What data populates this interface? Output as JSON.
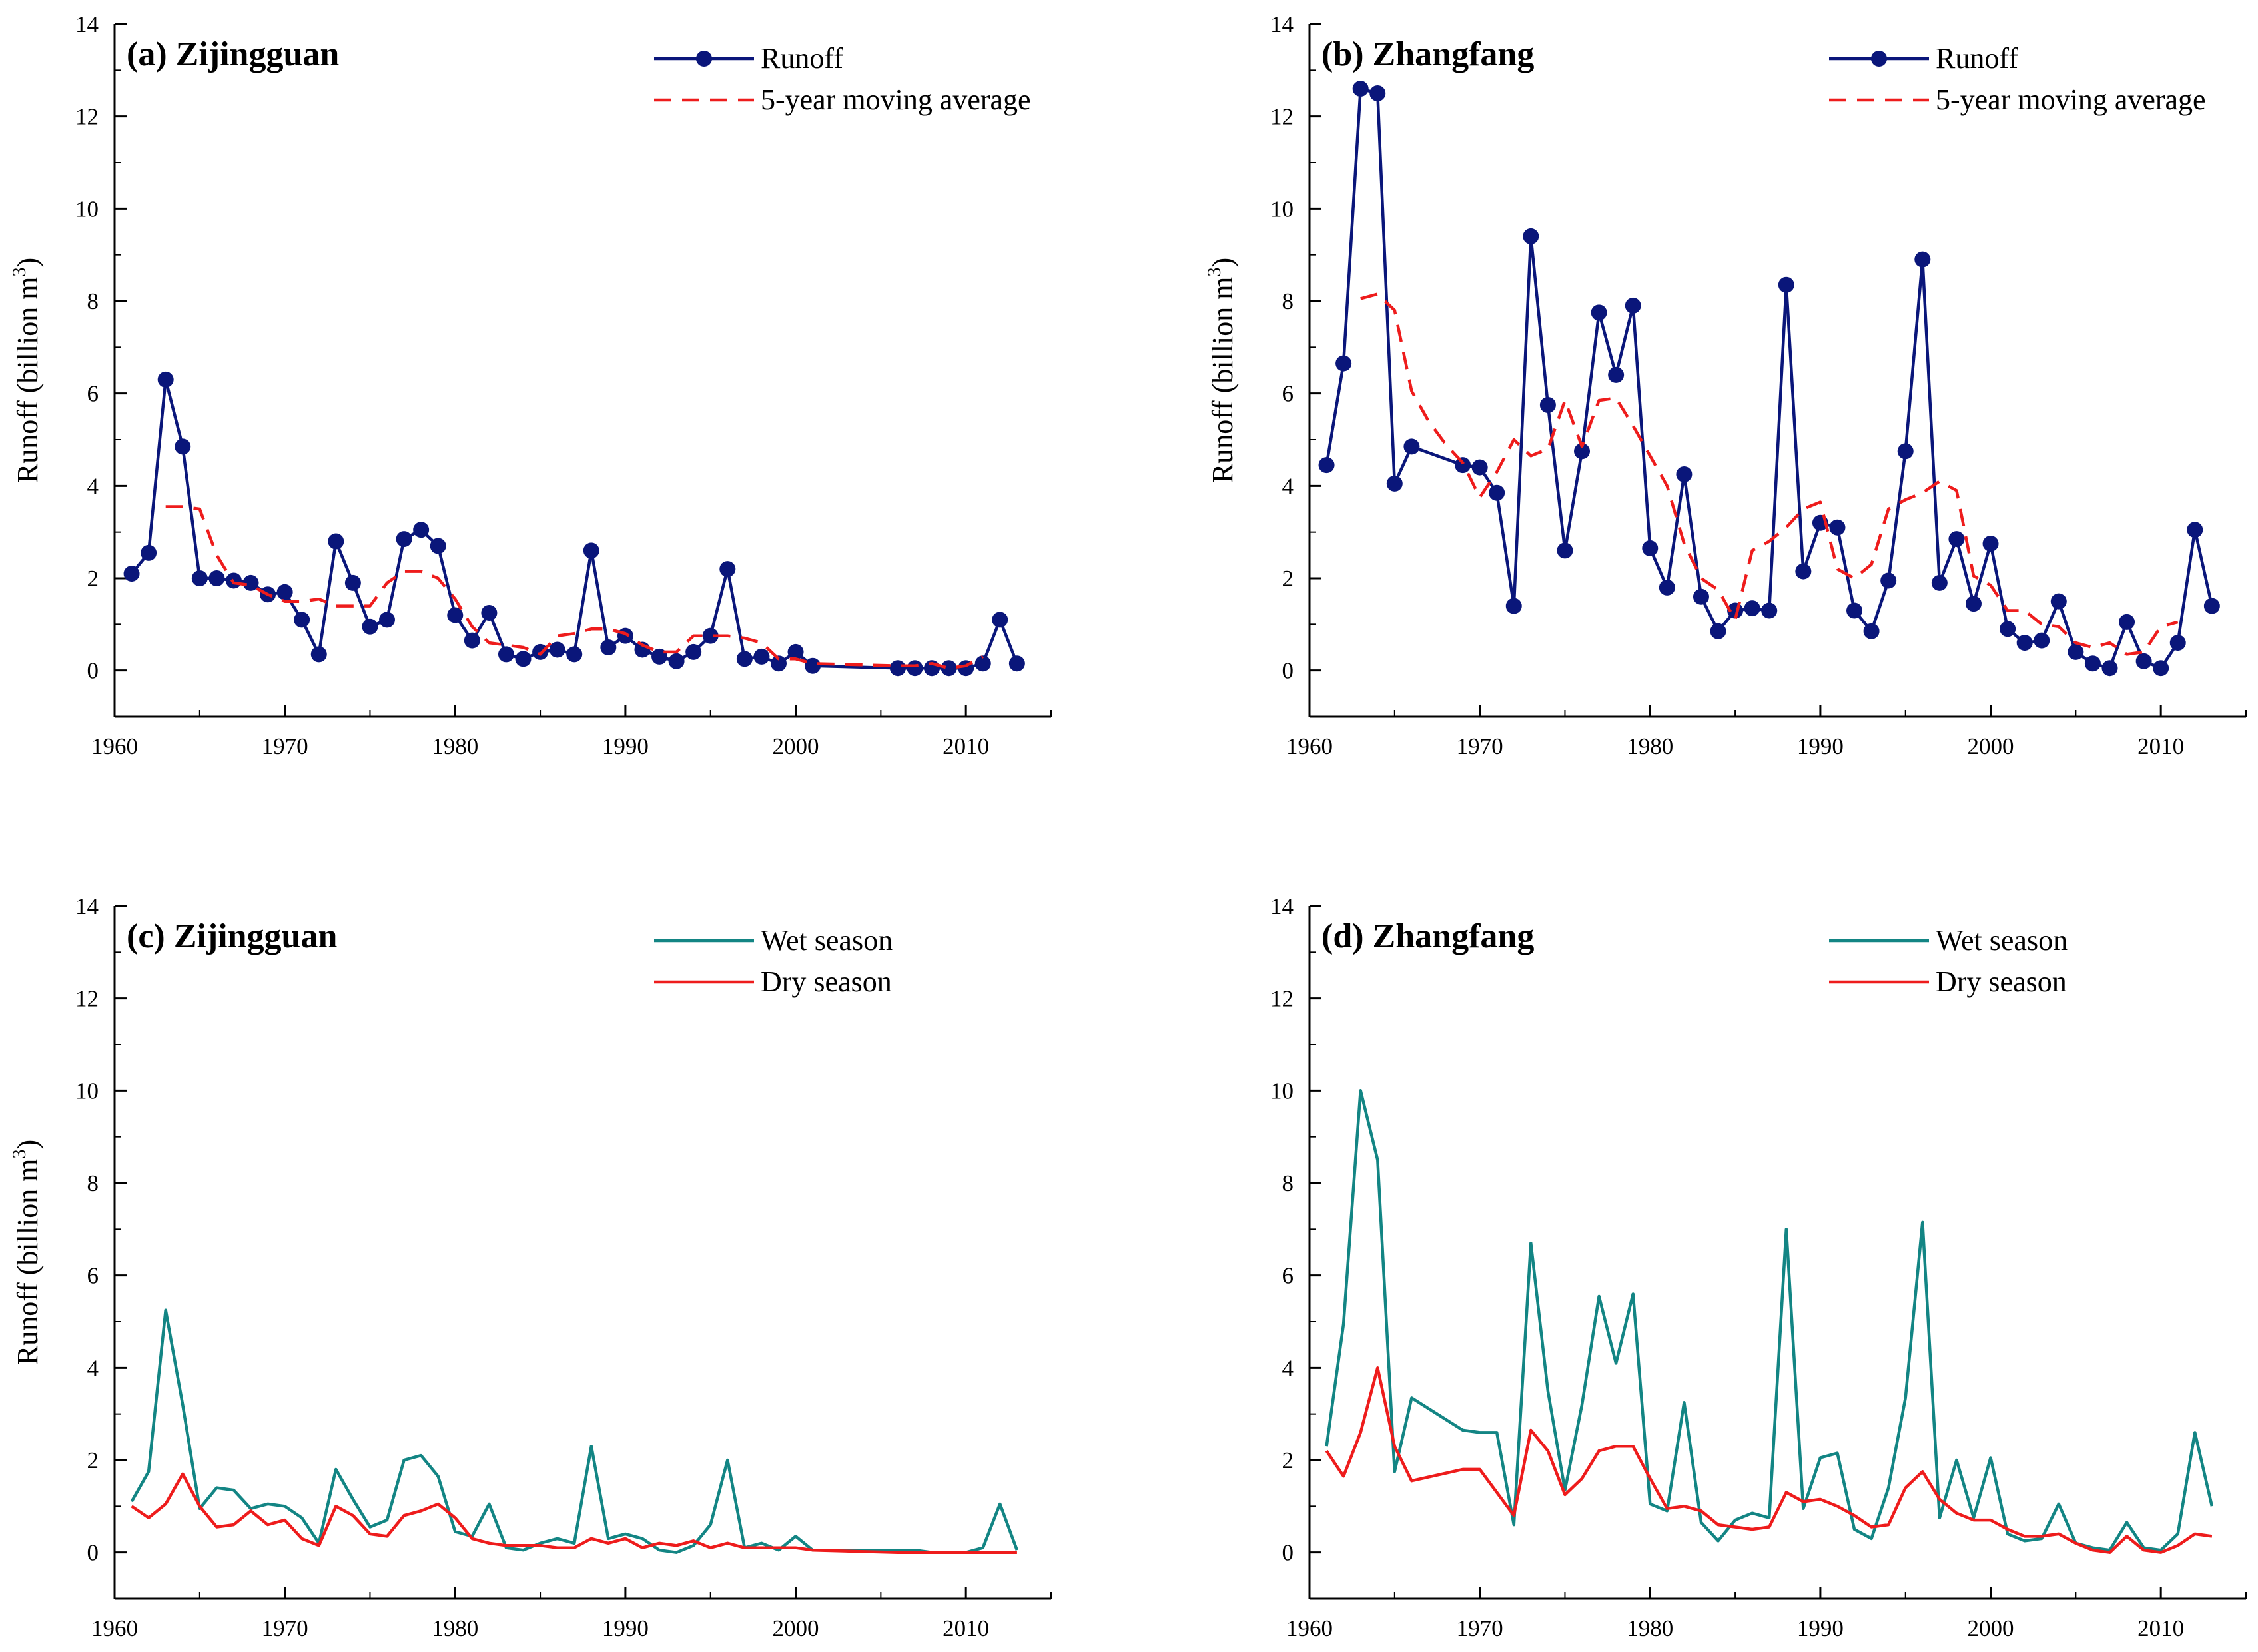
{
  "colors": {
    "runoff": "#0a167a",
    "moving_average": "#ee1c1c",
    "wet_season": "#138584",
    "dry_season": "#ee1c1c",
    "axis": "#000000"
  },
  "chart_data": [
    {
      "id": "a",
      "type": "line",
      "title": "(a) Zijingguan",
      "xlabel": "",
      "ylabel": "Runoff (billion m",
      "ylabel_sup": "3",
      "ylabel_end": ")",
      "xlim": [
        1960,
        2015
      ],
      "ylim": [
        -1,
        14
      ],
      "x_ticks": [
        1960,
        1970,
        1980,
        1990,
        2000,
        2010
      ],
      "y_ticks": [
        0,
        2,
        4,
        6,
        8,
        10,
        12,
        14
      ],
      "legend_position": "top-right",
      "series": [
        {
          "name": "Runoff",
          "style": "line-markers",
          "color_key": "runoff",
          "x": [
            1961,
            1962,
            1963,
            1964,
            1965,
            1966,
            1967,
            1968,
            1969,
            1970,
            1971,
            1972,
            1973,
            1974,
            1975,
            1976,
            1977,
            1978,
            1979,
            1980,
            1981,
            1982,
            1983,
            1984,
            1985,
            1986,
            1987,
            1988,
            1989,
            1990,
            1991,
            1992,
            1993,
            1994,
            1995,
            1996,
            1997,
            1998,
            1999,
            2000,
            2001,
            2006,
            2007,
            2008,
            2009,
            2010,
            2011,
            2012,
            2013
          ],
          "values": [
            2.1,
            2.55,
            6.3,
            4.85,
            2.0,
            2.0,
            1.95,
            1.9,
            1.65,
            1.7,
            1.1,
            0.35,
            2.8,
            1.9,
            0.95,
            1.1,
            2.85,
            3.05,
            2.7,
            1.2,
            0.65,
            1.25,
            0.35,
            0.25,
            0.4,
            0.45,
            0.35,
            2.6,
            0.5,
            0.75,
            0.45,
            0.3,
            0.2,
            0.4,
            0.75,
            2.2,
            0.25,
            0.3,
            0.15,
            0.4,
            0.1,
            0.05,
            0.05,
            0.05,
            0.05,
            0.05,
            0.15,
            1.1,
            0.15
          ]
        },
        {
          "name": "5-year moving average",
          "style": "dashed",
          "color_key": "moving_average",
          "x": [
            1963,
            1964,
            1965,
            1966,
            1967,
            1968,
            1969,
            1970,
            1971,
            1972,
            1973,
            1974,
            1975,
            1976,
            1977,
            1978,
            1979,
            1980,
            1981,
            1982,
            1983,
            1984,
            1985,
            1986,
            1987,
            1988,
            1989,
            1990,
            1991,
            1992,
            1993,
            1994,
            1995,
            1996,
            1997,
            1998,
            1999,
            2000,
            2001,
            2006,
            2007,
            2008,
            2009,
            2010,
            2011
          ],
          "values": [
            3.55,
            3.55,
            3.5,
            2.5,
            1.9,
            1.85,
            1.65,
            1.5,
            1.5,
            1.55,
            1.4,
            1.4,
            1.4,
            1.9,
            2.15,
            2.15,
            2.0,
            1.55,
            0.95,
            0.6,
            0.55,
            0.5,
            0.35,
            0.75,
            0.8,
            0.9,
            0.9,
            0.8,
            0.55,
            0.4,
            0.4,
            0.75,
            0.75,
            0.75,
            0.7,
            0.6,
            0.25,
            0.25,
            0.15,
            0.1,
            0.1,
            0.15,
            0.05,
            0.1,
            0.3
          ]
        }
      ]
    },
    {
      "id": "b",
      "type": "line",
      "title": "(b) Zhangfang",
      "xlabel": "",
      "ylabel": "Runoff (billion m",
      "ylabel_sup": "3",
      "ylabel_end": ")",
      "xlim": [
        1960,
        2015
      ],
      "ylim": [
        -1,
        14
      ],
      "x_ticks": [
        1960,
        1970,
        1980,
        1990,
        2000,
        2010
      ],
      "y_ticks": [
        0,
        2,
        4,
        6,
        8,
        10,
        12,
        14
      ],
      "legend_position": "top-right",
      "series": [
        {
          "name": "Runoff",
          "style": "line-markers",
          "color_key": "runoff",
          "x": [
            1961,
            1962,
            1963,
            1964,
            1965,
            1966,
            1969,
            1970,
            1971,
            1972,
            1973,
            1974,
            1975,
            1976,
            1977,
            1978,
            1979,
            1980,
            1981,
            1982,
            1983,
            1984,
            1985,
            1986,
            1987,
            1988,
            1989,
            1990,
            1991,
            1992,
            1993,
            1994,
            1995,
            1996,
            1997,
            1998,
            1999,
            2000,
            2001,
            2002,
            2003,
            2004,
            2005,
            2006,
            2007,
            2008,
            2009,
            2010,
            2011,
            2012,
            2013
          ],
          "values": [
            4.45,
            6.65,
            12.6,
            12.5,
            4.05,
            4.85,
            4.45,
            4.4,
            3.85,
            1.4,
            9.4,
            5.75,
            2.6,
            4.75,
            7.75,
            6.4,
            7.9,
            2.65,
            1.8,
            4.25,
            1.6,
            0.85,
            1.3,
            1.35,
            1.3,
            8.35,
            2.15,
            3.2,
            3.1,
            1.3,
            0.85,
            1.95,
            4.75,
            8.9,
            1.9,
            2.85,
            1.45,
            2.75,
            0.9,
            0.6,
            0.65,
            1.5,
            0.4,
            0.15,
            0.05,
            1.05,
            0.2,
            0.05,
            0.6,
            3.05,
            1.4
          ]
        },
        {
          "name": "5-year moving average",
          "style": "dashed",
          "color_key": "moving_average",
          "x": [
            1963,
            1964,
            1965,
            1966,
            1967,
            1968,
            1969,
            1970,
            1971,
            1972,
            1973,
            1974,
            1975,
            1976,
            1977,
            1978,
            1979,
            1980,
            1981,
            1982,
            1983,
            1984,
            1985,
            1986,
            1987,
            1988,
            1989,
            1990,
            1991,
            1992,
            1993,
            1994,
            1995,
            1996,
            1997,
            1998,
            1999,
            2000,
            2001,
            2002,
            2003,
            2004,
            2005,
            2006,
            2007,
            2008,
            2009,
            2010,
            2011
          ],
          "values": [
            8.05,
            8.15,
            7.8,
            6.05,
            5.4,
            4.9,
            4.5,
            3.75,
            4.3,
            5.0,
            4.65,
            4.8,
            5.85,
            4.85,
            5.85,
            5.9,
            5.3,
            4.65,
            4.0,
            2.75,
            2.0,
            1.75,
            1.1,
            2.6,
            2.8,
            3.1,
            3.5,
            3.65,
            2.2,
            2.0,
            2.3,
            3.5,
            3.7,
            3.85,
            4.1,
            3.9,
            2.05,
            1.85,
            1.3,
            1.3,
            1.0,
            0.95,
            0.6,
            0.5,
            0.6,
            0.35,
            0.4,
            0.95,
            1.05
          ]
        }
      ]
    },
    {
      "id": "c",
      "type": "line",
      "title": "(c) Zijingguan",
      "xlabel": "",
      "ylabel": "Runoff (billion m",
      "ylabel_sup": "3",
      "ylabel_end": ")",
      "xlim": [
        1960,
        2015
      ],
      "ylim": [
        -1,
        14
      ],
      "x_ticks": [
        1960,
        1970,
        1980,
        1990,
        2000,
        2010
      ],
      "y_ticks": [
        0,
        2,
        4,
        6,
        8,
        10,
        12,
        14
      ],
      "legend_position": "top-right",
      "series": [
        {
          "name": "Wet season",
          "style": "line",
          "color_key": "wet_season",
          "x": [
            1961,
            1962,
            1963,
            1964,
            1965,
            1966,
            1967,
            1968,
            1969,
            1970,
            1971,
            1972,
            1973,
            1974,
            1975,
            1976,
            1977,
            1978,
            1979,
            1980,
            1981,
            1982,
            1983,
            1984,
            1985,
            1986,
            1987,
            1988,
            1989,
            1990,
            1991,
            1992,
            1993,
            1994,
            1995,
            1996,
            1997,
            1998,
            1999,
            2000,
            2001,
            2006,
            2007,
            2008,
            2009,
            2010,
            2011,
            2012,
            2013
          ],
          "values": [
            1.1,
            1.75,
            5.25,
            3.2,
            0.95,
            1.4,
            1.35,
            0.95,
            1.05,
            1.0,
            0.75,
            0.2,
            1.8,
            1.15,
            0.55,
            0.7,
            2.0,
            2.1,
            1.65,
            0.45,
            0.35,
            1.05,
            0.1,
            0.05,
            0.2,
            0.3,
            0.2,
            2.3,
            0.3,
            0.4,
            0.3,
            0.05,
            0.0,
            0.15,
            0.6,
            2.0,
            0.1,
            0.2,
            0.05,
            0.35,
            0.05,
            0.05,
            0.05,
            0.0,
            0.0,
            0.0,
            0.1,
            1.05,
            0.05
          ]
        },
        {
          "name": "Dry season",
          "style": "line",
          "color_key": "dry_season",
          "x": [
            1961,
            1962,
            1963,
            1964,
            1965,
            1966,
            1967,
            1968,
            1969,
            1970,
            1971,
            1972,
            1973,
            1974,
            1975,
            1976,
            1977,
            1978,
            1979,
            1980,
            1981,
            1982,
            1983,
            1984,
            1985,
            1986,
            1987,
            1988,
            1989,
            1990,
            1991,
            1992,
            1993,
            1994,
            1995,
            1996,
            1997,
            1998,
            1999,
            2000,
            2001,
            2006,
            2007,
            2008,
            2009,
            2010,
            2011,
            2012,
            2013
          ],
          "values": [
            1.0,
            0.75,
            1.05,
            1.7,
            1.0,
            0.55,
            0.6,
            0.9,
            0.6,
            0.7,
            0.3,
            0.15,
            1.0,
            0.8,
            0.4,
            0.35,
            0.8,
            0.9,
            1.05,
            0.75,
            0.3,
            0.2,
            0.15,
            0.15,
            0.15,
            0.1,
            0.1,
            0.3,
            0.2,
            0.3,
            0.1,
            0.2,
            0.15,
            0.25,
            0.1,
            0.2,
            0.1,
            0.1,
            0.1,
            0.1,
            0.05,
            0.0,
            0.0,
            0.0,
            0.0,
            0.0,
            0.0,
            0.0,
            0.0
          ]
        }
      ]
    },
    {
      "id": "d",
      "type": "line",
      "title": "(d) Zhangfang",
      "xlabel": "",
      "ylabel": "",
      "xlim": [
        1960,
        2015
      ],
      "ylim": [
        -1,
        14
      ],
      "x_ticks": [
        1960,
        1970,
        1980,
        1990,
        2000,
        2010
      ],
      "y_ticks": [
        0,
        2,
        4,
        6,
        8,
        10,
        12,
        14
      ],
      "legend_position": "top-right",
      "series": [
        {
          "name": "Wet season",
          "style": "line",
          "color_key": "wet_season",
          "x": [
            1961,
            1962,
            1963,
            1964,
            1965,
            1966,
            1969,
            1970,
            1971,
            1972,
            1973,
            1974,
            1975,
            1976,
            1977,
            1978,
            1979,
            1980,
            1981,
            1982,
            1983,
            1984,
            1985,
            1986,
            1987,
            1988,
            1989,
            1990,
            1991,
            1992,
            1993,
            1994,
            1995,
            1996,
            1997,
            1998,
            1999,
            2000,
            2001,
            2002,
            2003,
            2004,
            2005,
            2006,
            2007,
            2008,
            2009,
            2010,
            2011,
            2012,
            2013
          ],
          "values": [
            2.3,
            4.95,
            10.0,
            8.5,
            1.75,
            3.35,
            2.65,
            2.6,
            2.6,
            0.6,
            6.7,
            3.5,
            1.35,
            3.2,
            5.55,
            4.1,
            5.6,
            1.05,
            0.9,
            3.25,
            0.65,
            0.25,
            0.7,
            0.85,
            0.75,
            7.0,
            0.95,
            2.05,
            2.15,
            0.5,
            0.3,
            1.4,
            3.35,
            7.15,
            0.75,
            2.0,
            0.75,
            2.05,
            0.4,
            0.25,
            0.3,
            1.05,
            0.2,
            0.1,
            0.05,
            0.65,
            0.1,
            0.05,
            0.4,
            2.6,
            1.0
          ]
        },
        {
          "name": "Dry season",
          "style": "line",
          "color_key": "dry_season",
          "x": [
            1961,
            1962,
            1963,
            1964,
            1965,
            1966,
            1969,
            1970,
            1971,
            1972,
            1973,
            1974,
            1975,
            1976,
            1977,
            1978,
            1979,
            1980,
            1981,
            1982,
            1983,
            1984,
            1985,
            1986,
            1987,
            1988,
            1989,
            1990,
            1991,
            1992,
            1993,
            1994,
            1995,
            1996,
            1997,
            1998,
            1999,
            2000,
            2001,
            2002,
            2003,
            2004,
            2005,
            2006,
            2007,
            2008,
            2009,
            2010,
            2011,
            2012,
            2013
          ],
          "values": [
            2.2,
            1.65,
            2.6,
            4.0,
            2.3,
            1.55,
            1.8,
            1.8,
            1.3,
            0.8,
            2.65,
            2.2,
            1.25,
            1.6,
            2.2,
            2.3,
            2.3,
            1.6,
            0.95,
            1.0,
            0.9,
            0.6,
            0.55,
            0.5,
            0.55,
            1.3,
            1.1,
            1.15,
            1.0,
            0.8,
            0.55,
            0.6,
            1.4,
            1.75,
            1.15,
            0.85,
            0.7,
            0.7,
            0.5,
            0.35,
            0.35,
            0.4,
            0.2,
            0.05,
            0.0,
            0.35,
            0.05,
            0.0,
            0.15,
            0.4,
            0.35
          ]
        }
      ]
    }
  ]
}
